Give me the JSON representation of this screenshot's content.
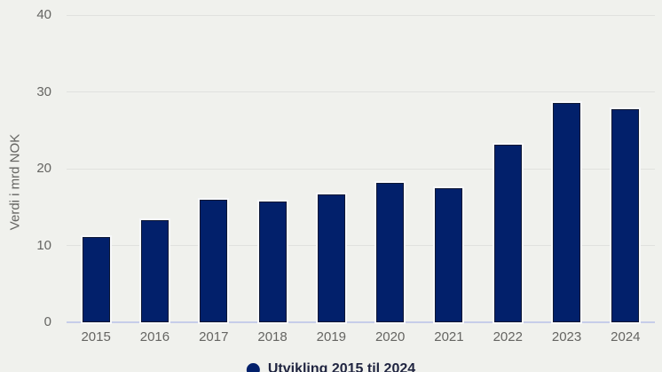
{
  "colors": {
    "background": "#f0f1ed",
    "bar_fill": "#02206b",
    "bar_edge": "#0b1633",
    "bar_stroke": "#f7f8fa",
    "gridline": "#e0e1de",
    "baseline": "#c7cde9",
    "tick_text": "#656562",
    "axis_title_text": "#656562",
    "legend_text": "#1f2440"
  },
  "chart_data": {
    "type": "bar",
    "categories": [
      "2015",
      "2016",
      "2017",
      "2018",
      "2019",
      "2020",
      "2021",
      "2022",
      "2023",
      "2024"
    ],
    "values": [
      11.1,
      13.3,
      16.0,
      15.7,
      16.7,
      18.2,
      17.5,
      23.1,
      28.6,
      27.8
    ],
    "title": "",
    "xlabel": "",
    "ylabel": "Verdi i mrd NOK",
    "ylim": [
      0,
      40
    ],
    "yticks": [
      0,
      10,
      20,
      30,
      40
    ],
    "grid": true,
    "legend": {
      "position": "bottom-center",
      "label": "Utvikling 2015 til 2024",
      "marker": "circle"
    }
  }
}
